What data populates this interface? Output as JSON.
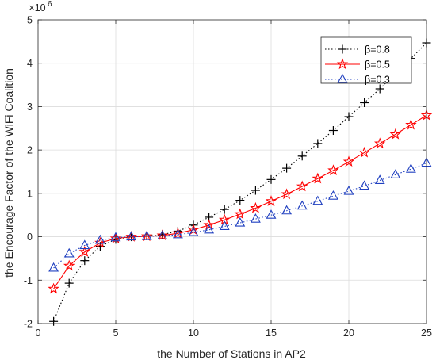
{
  "chart_data": {
    "type": "line",
    "title": "",
    "xlabel": "the Number of Stations in AP2",
    "ylabel": "the Encourage Factor of the WiFi Coalition",
    "y_exponent_base": "×10",
    "y_exponent_power": "6",
    "xlim": [
      0,
      25
    ],
    "ylim": [
      -2,
      5
    ],
    "xticks": [
      0,
      5,
      10,
      15,
      20,
      25
    ],
    "yticks": [
      -2,
      -1,
      0,
      1,
      2,
      3,
      4,
      5
    ],
    "grid": true,
    "legend_position": "top-right",
    "x": [
      1,
      2,
      3,
      4,
      5,
      6,
      7,
      8,
      9,
      10,
      11,
      12,
      13,
      14,
      15,
      16,
      17,
      18,
      19,
      20,
      21,
      22,
      23,
      24,
      25
    ],
    "series": [
      {
        "name": "β=0.8",
        "color": "#000000",
        "line_style": "dotted",
        "marker": "plus",
        "values": [
          -1.95,
          -1.07,
          -0.55,
          -0.22,
          -0.06,
          0.0,
          0.02,
          0.05,
          0.13,
          0.27,
          0.45,
          0.63,
          0.84,
          1.07,
          1.32,
          1.58,
          1.86,
          2.15,
          2.45,
          2.77,
          3.09,
          3.41,
          3.76,
          4.11,
          4.47
        ]
      },
      {
        "name": "β=0.5",
        "color": "#ff0000",
        "line_style": "solid",
        "marker": "star",
        "values": [
          -1.2,
          -0.67,
          -0.35,
          -0.14,
          -0.04,
          0.0,
          0.01,
          0.03,
          0.08,
          0.16,
          0.27,
          0.39,
          0.52,
          0.66,
          0.82,
          0.98,
          1.16,
          1.34,
          1.53,
          1.73,
          1.94,
          2.15,
          2.36,
          2.58,
          2.8
        ]
      },
      {
        "name": "β=0.3",
        "color": "#2040c0",
        "line_style": "dotted",
        "marker": "triangle",
        "values": [
          -0.72,
          -0.39,
          -0.2,
          -0.08,
          -0.02,
          0.0,
          0.01,
          0.02,
          0.05,
          0.1,
          0.16,
          0.24,
          0.32,
          0.41,
          0.5,
          0.6,
          0.71,
          0.82,
          0.94,
          1.05,
          1.17,
          1.3,
          1.43,
          1.56,
          1.7
        ]
      }
    ]
  }
}
